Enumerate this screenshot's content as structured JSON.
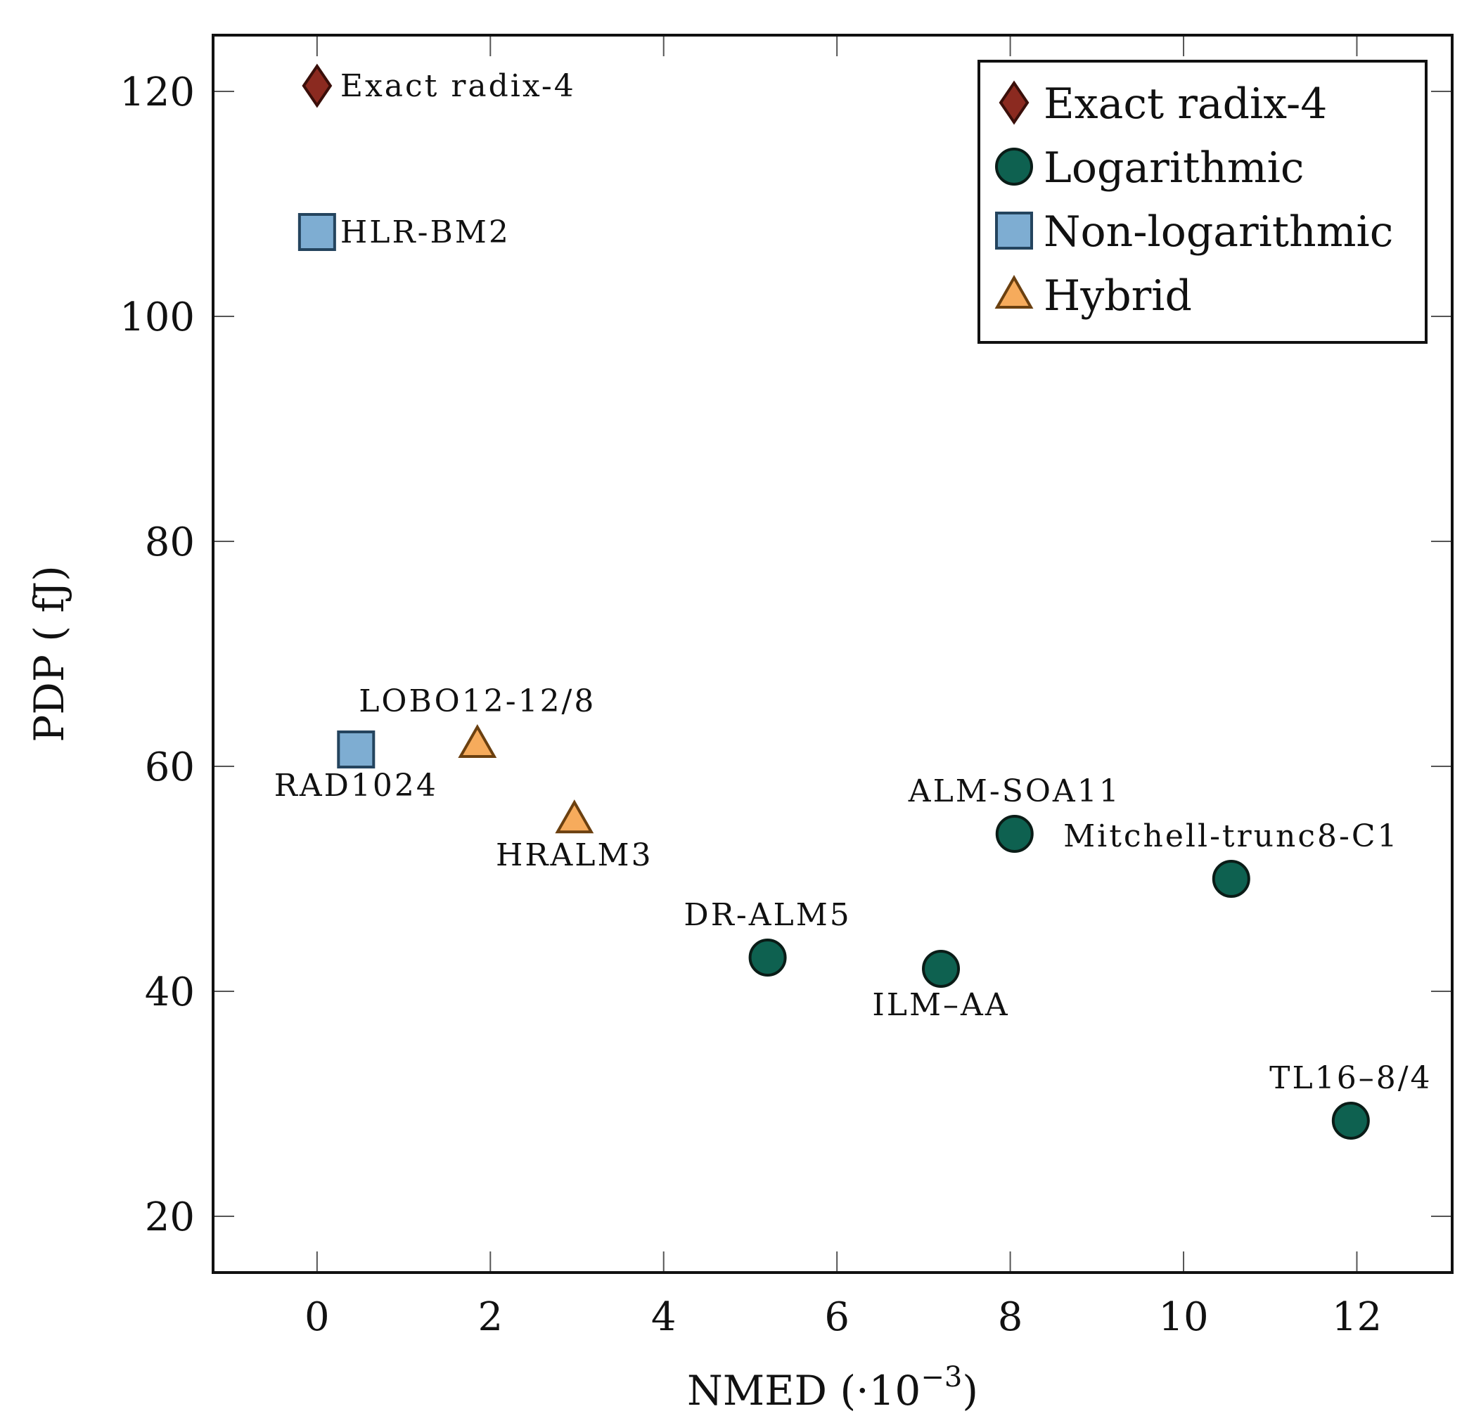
{
  "chart_data": {
    "type": "scatter",
    "xlabel": "NMED (·10",
    "xlabel_exponent": "−3",
    "xlabel_close": ")",
    "ylabel": "PDP ( fJ)",
    "xlim": [
      -1.2,
      13.1
    ],
    "ylim": [
      15,
      125
    ],
    "x_ticks": [
      0,
      2,
      4,
      6,
      8,
      10,
      12
    ],
    "y_ticks": [
      20,
      40,
      60,
      80,
      100,
      120
    ],
    "grid": false,
    "legend_position": "top-right",
    "series": [
      {
        "name": "Exact radix-4",
        "marker": "diamond",
        "color": "#8b2a20",
        "points": [
          {
            "label": "Exact radix-4",
            "x": 0,
            "y": 120.5,
            "label_pos": "right"
          }
        ]
      },
      {
        "name": "Logarithmic",
        "marker": "circle",
        "color": "#0e6150",
        "points": [
          {
            "label": "ALM-SOA11",
            "x": 8.05,
            "y": 54,
            "label_pos": "above"
          },
          {
            "label": "Mitchell-trunc8-C1",
            "x": 10.55,
            "y": 50,
            "label_pos": "above"
          },
          {
            "label": "DR-ALM5",
            "x": 5.2,
            "y": 43,
            "label_pos": "above"
          },
          {
            "label": "ILM–AA",
            "x": 7.2,
            "y": 42,
            "label_pos": "below"
          },
          {
            "label": "TL16–8/4",
            "x": 11.93,
            "y": 28.5,
            "label_pos": "above"
          }
        ]
      },
      {
        "name": "Non-logarithmic",
        "marker": "square",
        "color": "#7eadd2",
        "points": [
          {
            "label": "HLR-BM2",
            "x": 0,
            "y": 107.5,
            "label_pos": "right"
          },
          {
            "label": "RAD1024",
            "x": 0.45,
            "y": 61.5,
            "label_pos": "below"
          }
        ]
      },
      {
        "name": "Hybrid",
        "marker": "triangle",
        "color": "#f6ab5c",
        "points": [
          {
            "label": "LOBO12-12/8",
            "x": 1.85,
            "y": 62,
            "label_pos": "above"
          },
          {
            "label": "HRALM3",
            "x": 2.97,
            "y": 55.3,
            "label_pos": "below"
          }
        ]
      }
    ]
  }
}
